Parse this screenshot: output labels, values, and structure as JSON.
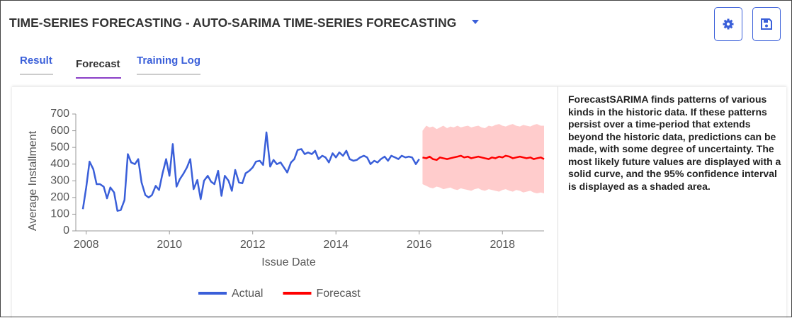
{
  "header": {
    "title": "TIME-SERIES FORECASTING - AUTO-SARIMA TIME-SERIES FORECASTING"
  },
  "tabs": [
    "Result",
    "Forecast",
    "Training Log"
  ],
  "active_tab": 1,
  "description": "ForecastSARIMA finds patterns of various kinds in the historic data. If these patterns persist over a time-period that extends beyond the historic data, predictions can be made, with some degree of uncertainty. The most likely future values are displayed with a solid curve, and the 95% confidence interval is displayed as a shaded area.",
  "chart_data": {
    "type": "line",
    "x_label": "Issue Date",
    "y_label": "Average Installment",
    "xlim": [
      2007.75,
      2019.0
    ],
    "xticks": [
      2008,
      2010,
      2012,
      2014,
      2016,
      2018
    ],
    "ylim": [
      0,
      700
    ],
    "yticks": [
      0,
      100,
      200,
      300,
      400,
      500,
      600,
      700
    ],
    "grid": false,
    "legend": "bottom",
    "series": [
      {
        "name": "Actual",
        "color": "#3a5fd9",
        "x": [
          2007.92,
          2008.0,
          2008.08,
          2008.17,
          2008.25,
          2008.33,
          2008.42,
          2008.5,
          2008.58,
          2008.67,
          2008.75,
          2008.83,
          2008.92,
          2009.0,
          2009.08,
          2009.17,
          2009.25,
          2009.33,
          2009.42,
          2009.5,
          2009.58,
          2009.67,
          2009.75,
          2009.83,
          2009.92,
          2010.0,
          2010.08,
          2010.17,
          2010.25,
          2010.33,
          2010.42,
          2010.5,
          2010.58,
          2010.67,
          2010.75,
          2010.83,
          2010.92,
          2011.0,
          2011.08,
          2011.17,
          2011.25,
          2011.33,
          2011.42,
          2011.5,
          2011.58,
          2011.67,
          2011.75,
          2011.83,
          2011.92,
          2012.0,
          2012.08,
          2012.17,
          2012.25,
          2012.33,
          2012.42,
          2012.5,
          2012.58,
          2012.67,
          2012.75,
          2012.83,
          2012.92,
          2013.0,
          2013.08,
          2013.17,
          2013.25,
          2013.33,
          2013.42,
          2013.5,
          2013.58,
          2013.67,
          2013.75,
          2013.83,
          2013.92,
          2014.0,
          2014.08,
          2014.17,
          2014.25,
          2014.33,
          2014.42,
          2014.5,
          2014.58,
          2014.67,
          2014.75,
          2014.83,
          2014.92,
          2015.0,
          2015.08,
          2015.17,
          2015.25,
          2015.33,
          2015.42,
          2015.5,
          2015.58,
          2015.67,
          2015.75,
          2015.83,
          2015.92,
          2016.0
        ],
        "values": [
          130,
          260,
          415,
          370,
          280,
          280,
          265,
          195,
          260,
          230,
          120,
          125,
          185,
          460,
          410,
          400,
          430,
          290,
          215,
          200,
          215,
          270,
          245,
          340,
          430,
          330,
          520,
          265,
          310,
          340,
          380,
          430,
          250,
          305,
          190,
          300,
          330,
          295,
          280,
          360,
          210,
          330,
          300,
          240,
          365,
          290,
          285,
          345,
          360,
          380,
          415,
          420,
          395,
          590,
          385,
          425,
          400,
          410,
          380,
          350,
          410,
          430,
          485,
          490,
          460,
          470,
          460,
          480,
          430,
          450,
          440,
          410,
          465,
          440,
          470,
          450,
          480,
          430,
          420,
          425,
          440,
          450,
          440,
          400,
          420,
          410,
          430,
          445,
          420,
          450,
          440,
          430,
          450,
          440,
          445,
          440,
          400,
          430
        ]
      },
      {
        "name": "Forecast",
        "color": "#ff0000",
        "band_color": "#ffcccc",
        "x": [
          2016.08,
          2016.17,
          2016.25,
          2016.33,
          2016.42,
          2016.5,
          2016.58,
          2016.67,
          2016.75,
          2016.83,
          2016.92,
          2017.0,
          2017.08,
          2017.17,
          2017.25,
          2017.33,
          2017.42,
          2017.5,
          2017.58,
          2017.67,
          2017.75,
          2017.83,
          2017.92,
          2018.0,
          2018.08,
          2018.17,
          2018.25,
          2018.33,
          2018.42,
          2018.5,
          2018.58,
          2018.67,
          2018.75,
          2018.83,
          2018.92,
          2019.0
        ],
        "values": [
          440,
          435,
          445,
          430,
          425,
          440,
          435,
          430,
          435,
          440,
          445,
          450,
          440,
          445,
          435,
          440,
          445,
          440,
          435,
          430,
          440,
          435,
          445,
          440,
          450,
          445,
          435,
          440,
          445,
          440,
          435,
          440,
          430,
          435,
          440,
          430
        ],
        "lower": [
          280,
          270,
          260,
          255,
          265,
          260,
          250,
          255,
          260,
          250,
          245,
          255,
          250,
          245,
          240,
          250,
          255,
          245,
          240,
          250,
          245,
          240,
          235,
          245,
          250,
          240,
          235,
          245,
          240,
          230,
          235,
          240,
          230,
          225,
          230,
          225
        ],
        "upper": [
          600,
          630,
          620,
          625,
          610,
          620,
          630,
          615,
          625,
          620,
          630,
          620,
          625,
          630,
          620,
          625,
          630,
          620,
          615,
          630,
          625,
          635,
          640,
          630,
          625,
          635,
          640,
          630,
          625,
          635,
          630,
          625,
          635,
          640,
          630,
          630
        ]
      }
    ]
  }
}
